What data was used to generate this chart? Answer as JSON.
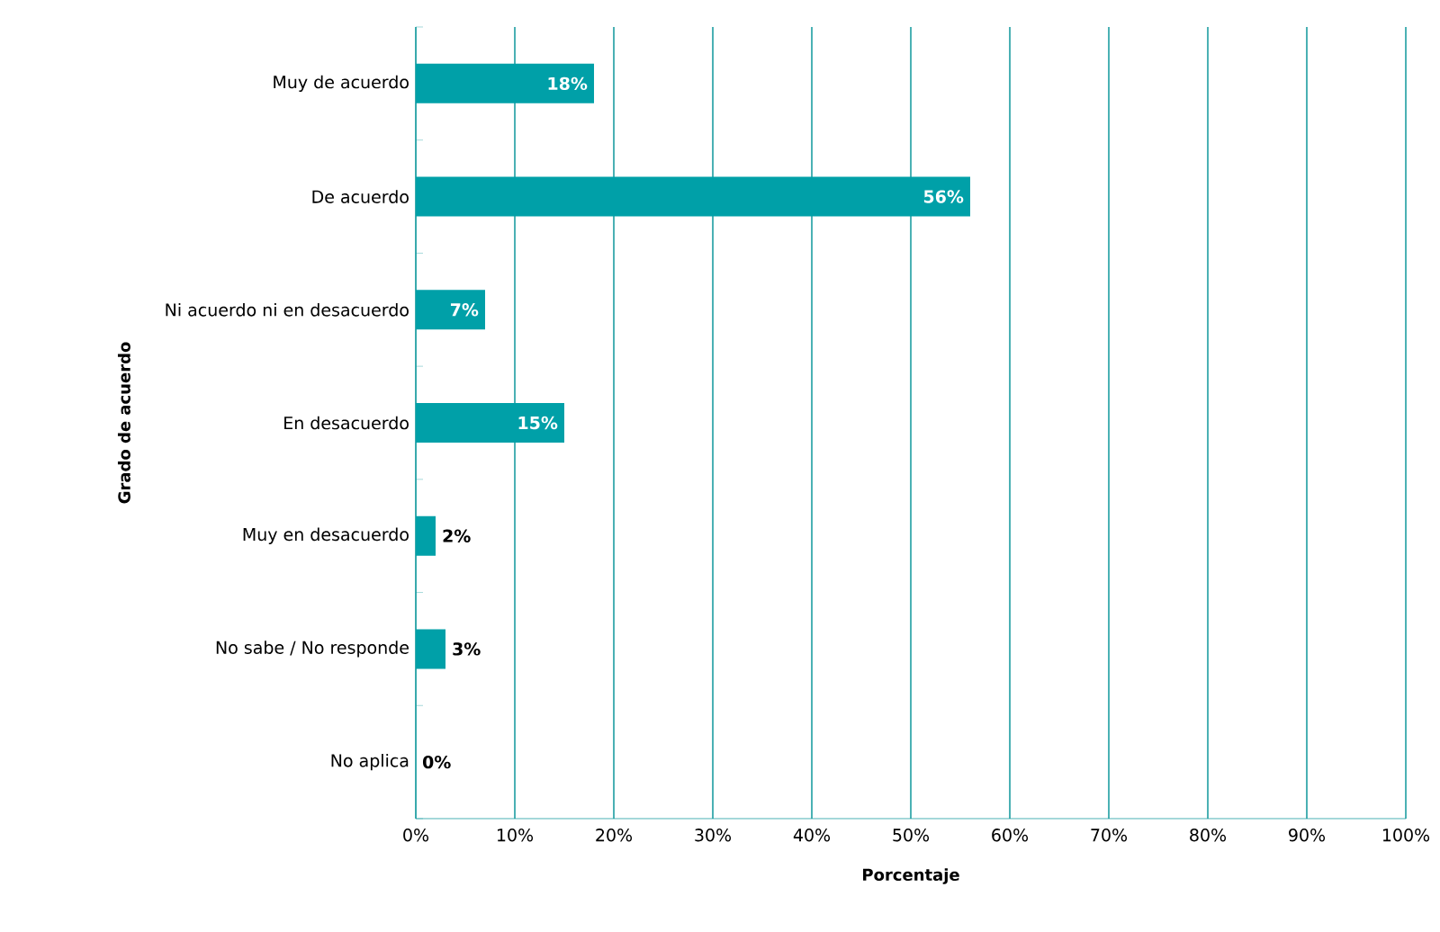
{
  "chart_data": {
    "type": "bar",
    "orientation": "horizontal",
    "xlabel": "Porcentaje",
    "ylabel": "Grado de acuerdo",
    "categories": [
      "Muy de acuerdo",
      "De acuerdo",
      "Ni acuerdo ni en desacuerdo",
      "En desacuerdo",
      "Muy en desacuerdo",
      "No sabe / No responde",
      "No aplica"
    ],
    "values": [
      18,
      56,
      7,
      15,
      2,
      3,
      0
    ],
    "value_labels": [
      "18%",
      "56%",
      "7%",
      "15%",
      "2%",
      "3%",
      "0%"
    ],
    "color": "#00a0a8",
    "xlim": [
      0,
      100
    ],
    "xticks": [
      {
        "value": 0,
        "label": "0%"
      },
      {
        "value": 10,
        "label": "10%"
      },
      {
        "value": 20,
        "label": "20%"
      },
      {
        "value": 30,
        "label": "30%"
      },
      {
        "value": 40,
        "label": "40%"
      },
      {
        "value": 50,
        "label": "50%"
      },
      {
        "value": 60,
        "label": "60%"
      },
      {
        "value": 70,
        "label": "70%"
      },
      {
        "value": 80,
        "label": "80%"
      },
      {
        "value": 90,
        "label": "90%"
      },
      {
        "value": 100,
        "label": "100%"
      }
    ],
    "grid": "x"
  }
}
